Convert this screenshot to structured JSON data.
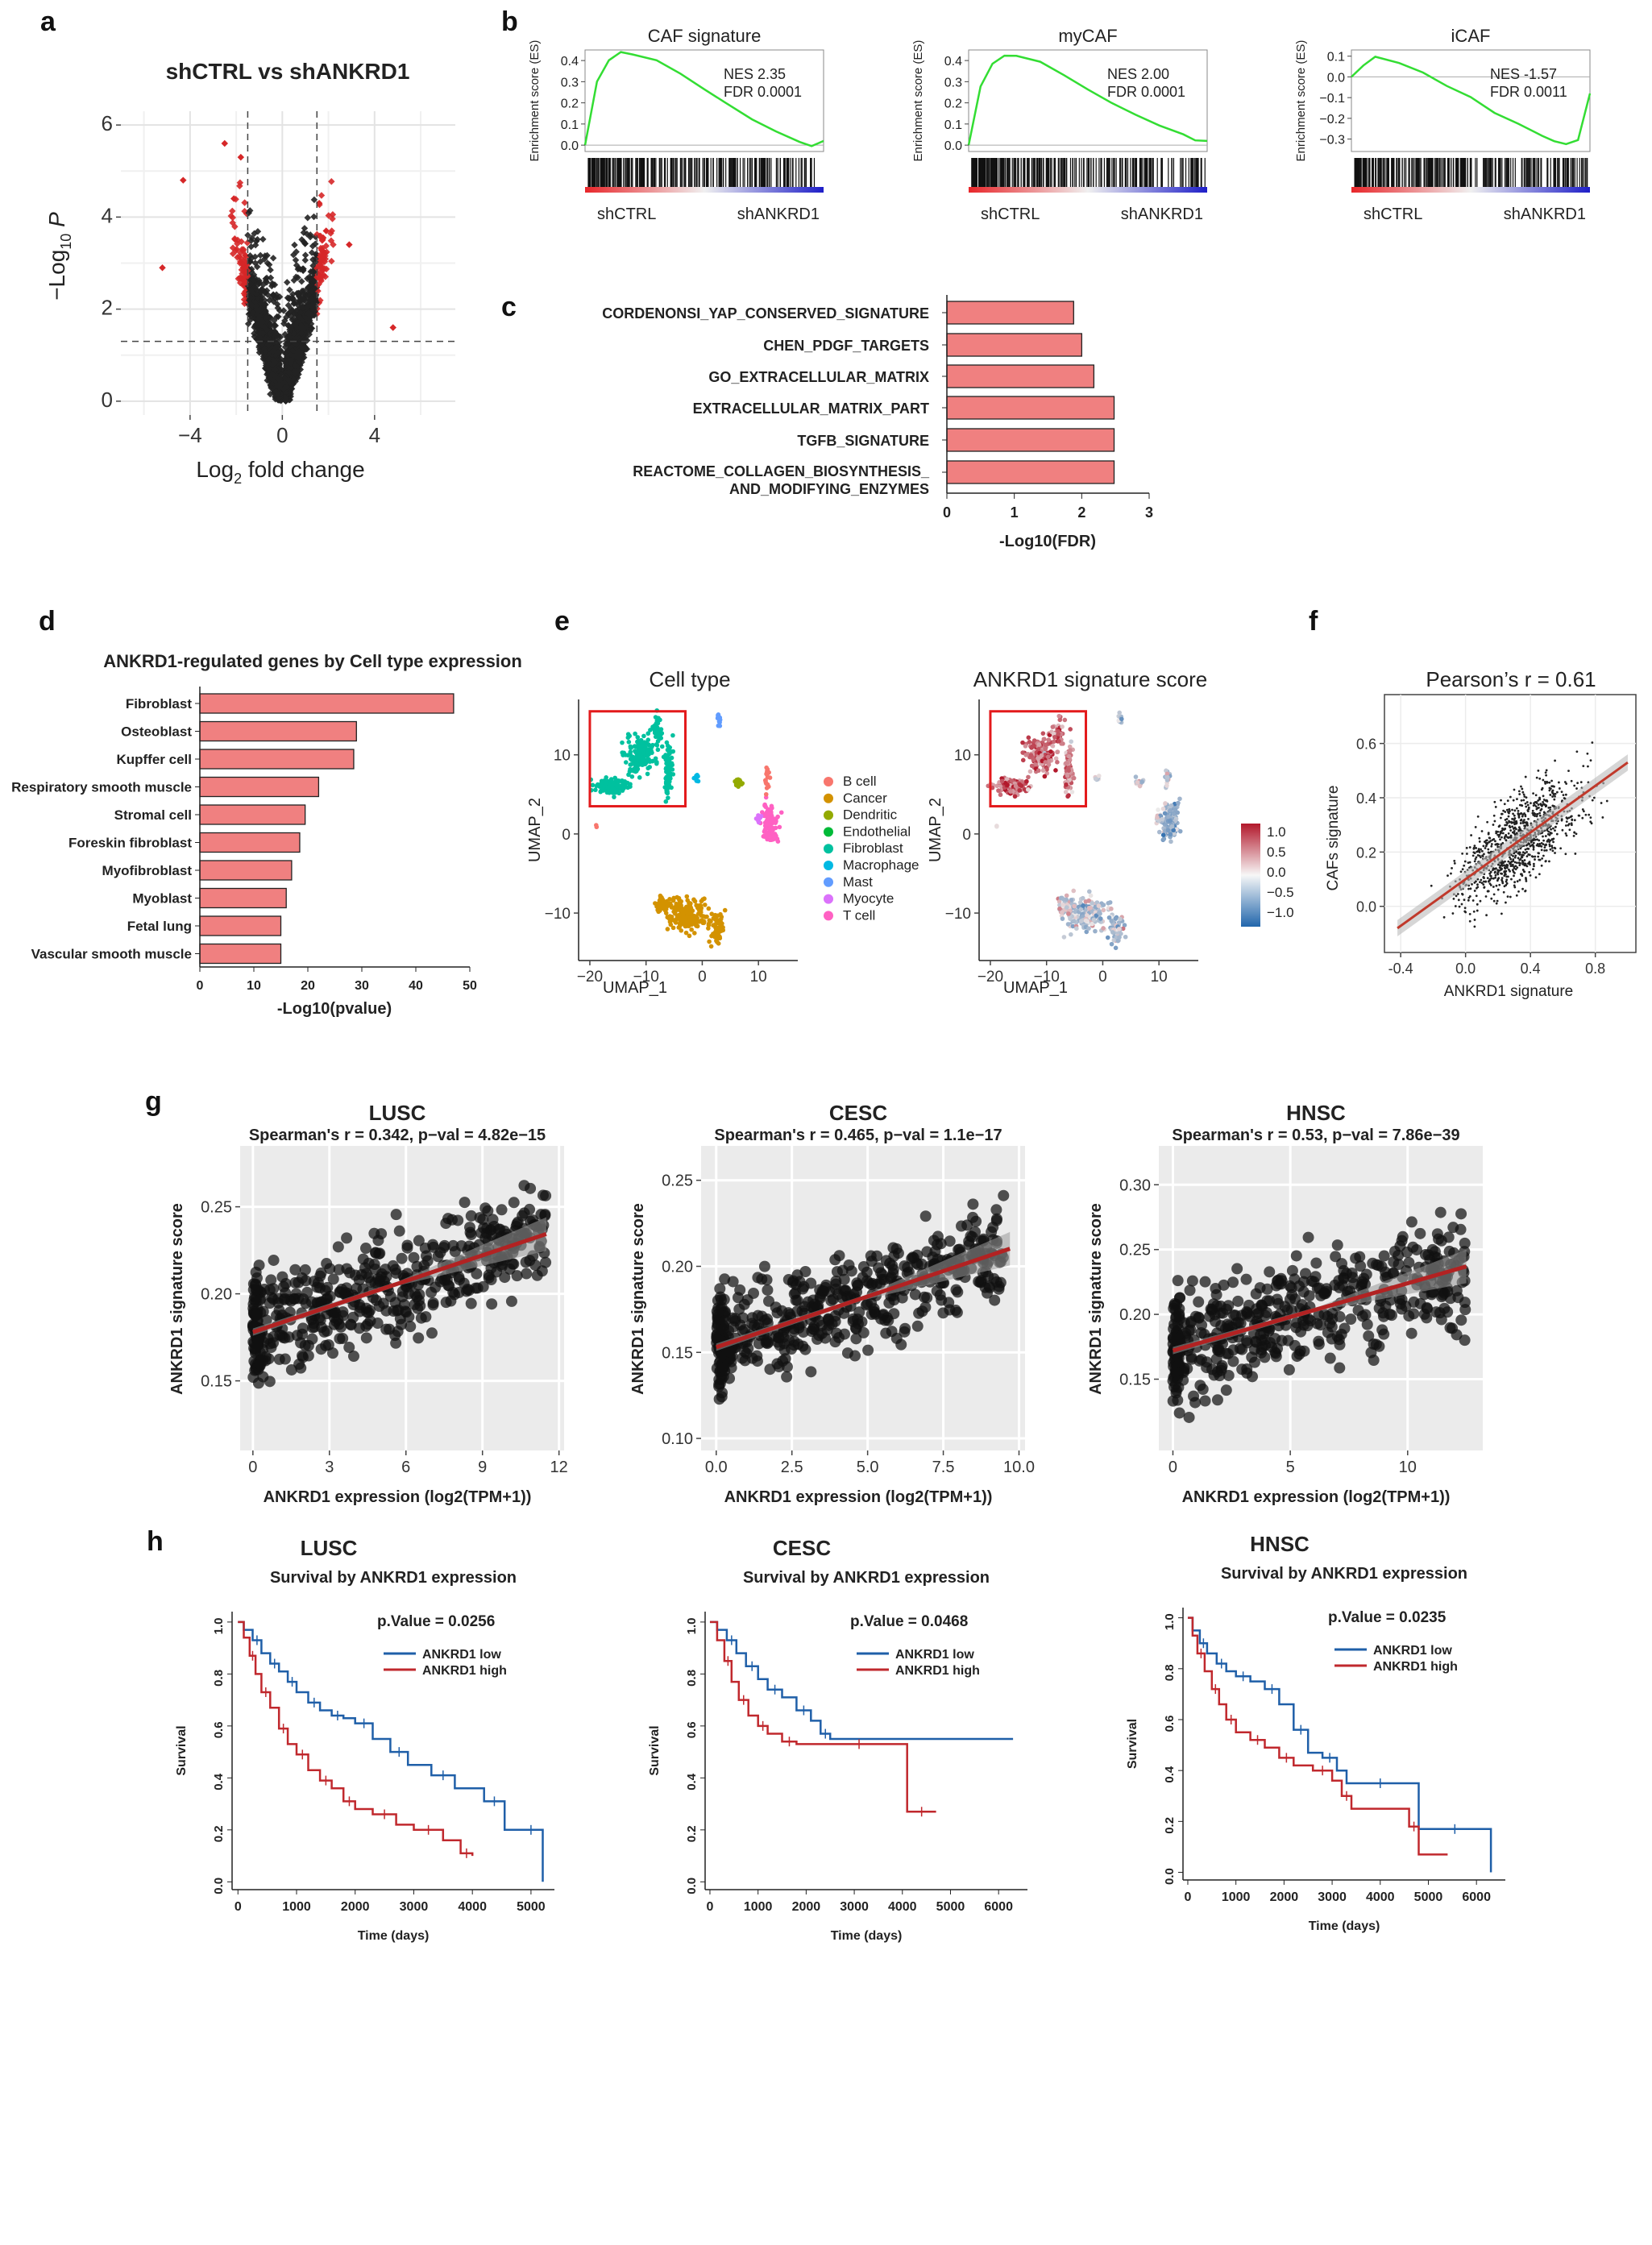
{
  "panel_labels": [
    "a",
    "b",
    "c",
    "d",
    "e",
    "f",
    "g",
    "h"
  ],
  "chart_data": [
    {
      "id": "a",
      "type": "scatter",
      "title": "shCTRL vs shANKRD1",
      "xlabel": "Log2 fold change",
      "xlabel_main": "Log",
      "xlabel_sub": "2",
      "xlabel_rest": " fold change",
      "ylabel": "−Log10 P",
      "ylabel_main": "−Log",
      "ylabel_sub": "10",
      "ylabel_rest": " P",
      "xlim": [
        -7,
        7.5
      ],
      "ylim": [
        -0.3,
        6.3
      ],
      "xticks": [
        -4,
        0,
        4
      ],
      "xtick_labels": [
        "−4",
        "0",
        "4"
      ],
      "yticks": [
        0,
        2,
        4,
        6
      ],
      "ytick_labels": [
        "0",
        "2",
        "4",
        "6"
      ],
      "fc_cutoffs": [
        -1.5,
        1.5
      ],
      "p_cutoff": 1.3,
      "colors": {
        "significant": "#d62728",
        "ns": "#222222"
      }
    },
    {
      "id": "b1",
      "type": "line",
      "title": "CAF signature",
      "ylabel": "Enrichment score (ES)",
      "yticks": [
        0.0,
        0.1,
        0.2,
        0.3,
        0.4
      ],
      "ytick_labels": [
        "0.0",
        "0.1",
        "0.2",
        "0.3",
        "0.4"
      ],
      "ylim": [
        -0.03,
        0.45
      ],
      "x": [
        0,
        0.05,
        0.1,
        0.15,
        0.2,
        0.3,
        0.4,
        0.5,
        0.6,
        0.7,
        0.8,
        0.9,
        0.95,
        1.0
      ],
      "es": [
        0,
        0.3,
        0.4,
        0.44,
        0.43,
        0.4,
        0.34,
        0.27,
        0.19,
        0.12,
        0.06,
        0.02,
        -0.01,
        0.02
      ],
      "annotation": [
        "NES 2.35",
        "FDR 0.0001"
      ],
      "left_label": "shCTRL",
      "right_label": "shANKRD1"
    },
    {
      "id": "b2",
      "type": "line",
      "title": "myCAF",
      "ylabel": "Enrichment score (ES)",
      "yticks": [
        0.0,
        0.1,
        0.2,
        0.3,
        0.4
      ],
      "ytick_labels": [
        "0.0",
        "0.1",
        "0.2",
        "0.3",
        "0.4"
      ],
      "ylim": [
        -0.03,
        0.45
      ],
      "x": [
        0,
        0.05,
        0.1,
        0.15,
        0.2,
        0.3,
        0.4,
        0.5,
        0.6,
        0.7,
        0.8,
        0.9,
        0.95,
        1.0
      ],
      "es": [
        0,
        0.28,
        0.38,
        0.42,
        0.42,
        0.39,
        0.33,
        0.26,
        0.2,
        0.14,
        0.09,
        0.05,
        0.02,
        0.02
      ],
      "annotation": [
        "NES 2.00",
        "FDR 0.0001"
      ],
      "left_label": "shCTRL",
      "right_label": "shANKRD1"
    },
    {
      "id": "b3",
      "type": "line",
      "title": "iCAF",
      "ylabel": "Enrichment score (ES)",
      "yticks": [
        0.1,
        0.0,
        -0.1,
        -0.2,
        -0.3
      ],
      "ytick_labels": [
        "0.1",
        "0.0",
        "−0.1",
        "−0.2",
        "−0.3"
      ],
      "ylim": [
        -0.36,
        0.13
      ],
      "x": [
        0,
        0.05,
        0.1,
        0.2,
        0.3,
        0.4,
        0.5,
        0.6,
        0.7,
        0.8,
        0.85,
        0.9,
        0.95,
        1.0
      ],
      "es": [
        0,
        0.05,
        0.1,
        0.07,
        0.02,
        -0.04,
        -0.1,
        -0.17,
        -0.23,
        -0.28,
        -0.31,
        -0.33,
        -0.3,
        -0.08
      ],
      "annotation": [
        "NES -1.57",
        "FDR 0.0011"
      ],
      "left_label": "shCTRL",
      "right_label": "shANKRD1"
    },
    {
      "id": "c",
      "type": "bar",
      "orientation": "horizontal",
      "categories": [
        "CORDENONSI_YAP_CONSERVED_SIGNATURE",
        "CHEN_PDGF_TARGETS",
        "GO_EXTRACELLULAR_MATRIX",
        "EXTRACELLULAR_MATRIX_PART",
        "TGFB_SIGNATURE",
        "REACTOME_COLLAGEN_BIOSYNTHESIS_\nAND_MODIFYING_ENZYMES"
      ],
      "values": [
        1.88,
        2.0,
        2.18,
        2.48,
        2.48,
        2.48
      ],
      "xlabel": "-Log10(FDR)",
      "xlim": [
        0,
        3
      ],
      "xticks": [
        0,
        1,
        2,
        3
      ],
      "xtick_labels": [
        "0",
        "1",
        "2",
        "3"
      ],
      "bar_color": "#f08080"
    },
    {
      "id": "d",
      "type": "bar",
      "orientation": "horizontal",
      "title": "ANKRD1-regulated genes by Cell type expression",
      "categories": [
        "Fibroblast",
        "Osteoblast",
        "Kupffer cell",
        "Respiratory smooth muscle",
        "Stromal cell",
        "Foreskin fibroblast",
        "Myofibroblast",
        "Myoblast",
        "Fetal lung",
        "Vascular smooth muscle"
      ],
      "values": [
        47,
        29,
        28.5,
        22,
        19.5,
        18.5,
        17,
        16,
        15,
        15
      ],
      "xlabel": "-Log10(pvalue)",
      "xlim": [
        0,
        50
      ],
      "xticks": [
        0,
        10,
        20,
        30,
        40,
        50
      ],
      "xtick_labels": [
        "0",
        "10",
        "20",
        "30",
        "40",
        "50"
      ],
      "bar_color": "#f08080"
    },
    {
      "id": "e1",
      "type": "scatter",
      "title": "Cell type",
      "xlabel": "UMAP_1",
      "ylabel": "UMAP_2",
      "xlim": [
        -22,
        17
      ],
      "ylim": [
        -16,
        17
      ],
      "xticks": [
        -20,
        -10,
        0,
        10
      ],
      "xtick_labels": [
        "−20",
        "−10",
        "0",
        "10"
      ],
      "yticks": [
        -10,
        0,
        10
      ],
      "ytick_labels": [
        "−10",
        "0",
        "10"
      ],
      "legend": [
        {
          "label": "B cell",
          "color": "#f8766d"
        },
        {
          "label": "Cancer",
          "color": "#d39200"
        },
        {
          "label": "Dendritic",
          "color": "#93aa00"
        },
        {
          "label": "Endothelial",
          "color": "#00ba38"
        },
        {
          "label": "Fibroblast",
          "color": "#00c19f"
        },
        {
          "label": "Macrophage",
          "color": "#00b9e3"
        },
        {
          "label": "Mast",
          "color": "#619cff"
        },
        {
          "label": "Myocyte",
          "color": "#db72fb"
        },
        {
          "label": "T cell",
          "color": "#ff61c3"
        }
      ],
      "highlight_box": {
        "x": [
          -20,
          -3
        ],
        "y": [
          3.5,
          15.5
        ],
        "color": "#e31a1c"
      }
    },
    {
      "id": "e2",
      "type": "scatter",
      "title": "ANKRD1 signature score",
      "xlabel": "UMAP_1",
      "ylabel": "UMAP_2",
      "xlim": [
        -22,
        17
      ],
      "ylim": [
        -16,
        17
      ],
      "xticks": [
        -20,
        -10,
        0,
        10
      ],
      "xtick_labels": [
        "−20",
        "−10",
        "0",
        "10"
      ],
      "yticks": [
        -10,
        0,
        10
      ],
      "ytick_labels": [
        "−10",
        "0",
        "10"
      ],
      "colorbar": {
        "min": -1.0,
        "max": 1.0,
        "ticks": [
          "1.0",
          "0.5",
          "0.0",
          "−0.5",
          "−1.0"
        ],
        "colors": [
          "#b2182b",
          "#f7f7f7",
          "#2166ac"
        ]
      },
      "highlight_box": {
        "x": [
          -20,
          -3
        ],
        "y": [
          3.5,
          15.5
        ],
        "color": "#e31a1c"
      }
    },
    {
      "id": "f",
      "type": "scatter",
      "title": "Pearson’s r = 0.61",
      "xlabel": "ANKRD1 signature",
      "ylabel": "CAFs signature",
      "xlim": [
        -0.5,
        1.05
      ],
      "ylim": [
        -0.17,
        0.78
      ],
      "xticks": [
        -0.4,
        0.0,
        0.4,
        0.8
      ],
      "xtick_labels": [
        "-0.4",
        "0.0",
        "0.4",
        "0.8"
      ],
      "yticks": [
        0.0,
        0.2,
        0.4,
        0.6
      ],
      "ytick_labels": [
        "0.0",
        "0.2",
        "0.4",
        "0.6"
      ],
      "fit": {
        "slope": 0.43,
        "intercept": 0.1,
        "color": "#c0392b"
      }
    },
    {
      "id": "g1",
      "type": "scatter",
      "title": "LUSC",
      "subtitle": "Spearman's r = 0.342, p−val = 4.82e−15",
      "xlabel": "ANKRD1 expression (log2(TPM+1))",
      "ylabel": "ANKRD1 signature score",
      "xlim": [
        -0.5,
        12.2
      ],
      "ylim": [
        0.11,
        0.285
      ],
      "xticks": [
        0,
        3,
        6,
        9,
        12
      ],
      "xtick_labels": [
        "0",
        "3",
        "6",
        "9",
        "12"
      ],
      "yticks": [
        0.15,
        0.2,
        0.25
      ],
      "ytick_labels": [
        "0.15",
        "0.20",
        "0.25"
      ],
      "fit": {
        "slope": 0.0049,
        "intercept": 0.178,
        "x_end": 11.5,
        "color": "#b22222"
      }
    },
    {
      "id": "g2",
      "type": "scatter",
      "title": "CESC",
      "subtitle": "Spearman's r = 0.465, p−val = 1.1e−17",
      "xlabel": "ANKRD1 expression (log2(TPM+1))",
      "ylabel": "ANKRD1 signature score",
      "xlim": [
        -0.5,
        10.2
      ],
      "ylim": [
        0.093,
        0.27
      ],
      "xticks": [
        0,
        2.5,
        5,
        7.5,
        10
      ],
      "xtick_labels": [
        "0.0",
        "2.5",
        "5.0",
        "7.5",
        "10.0"
      ],
      "yticks": [
        0.1,
        0.15,
        0.2,
        0.25
      ],
      "ytick_labels": [
        "0.10",
        "0.15",
        "0.20",
        "0.25"
      ],
      "fit": {
        "slope": 0.0059,
        "intercept": 0.153,
        "x_end": 9.7,
        "color": "#b22222"
      }
    },
    {
      "id": "g3",
      "type": "scatter",
      "title": "HNSC",
      "subtitle": "Spearman's r = 0.53, p−val = 7.86e−39",
      "xlabel": "ANKRD1 expression (log2(TPM+1))",
      "ylabel": "ANKRD1 signature score",
      "xlim": [
        -0.6,
        13.2
      ],
      "ylim": [
        0.095,
        0.33
      ],
      "xticks": [
        0,
        5,
        10
      ],
      "xtick_labels": [
        "0",
        "5",
        "10"
      ],
      "yticks": [
        0.15,
        0.2,
        0.25,
        0.3
      ],
      "ytick_labels": [
        "0.15",
        "0.20",
        "0.25",
        "0.30"
      ],
      "fit": {
        "slope": 0.0052,
        "intercept": 0.172,
        "x_end": 12.5,
        "color": "#b22222"
      }
    },
    {
      "id": "h1",
      "type": "line",
      "title": "LUSC",
      "subtitle": "Survival by ANKRD1 expression",
      "xlabel": "Time (days)",
      "ylabel": "Survival",
      "pvalue": "p.Value = 0.0256",
      "xlim": [
        -100,
        5400
      ],
      "ylim": [
        -0.03,
        1.04
      ],
      "xticks": [
        0,
        1000,
        2000,
        3000,
        4000,
        5000
      ],
      "xtick_labels": [
        "0",
        "1000",
        "2000",
        "3000",
        "4000",
        "5000"
      ],
      "yticks": [
        0,
        0.2,
        0.4,
        0.6,
        0.8,
        1.0
      ],
      "ytick_labels": [
        "0.0",
        "0.2",
        "0.4",
        "0.6",
        "0.8",
        "1.0"
      ],
      "series": [
        {
          "name": "ANKRD1 low",
          "color": "#1f5fa8",
          "time": [
            0,
            100,
            250,
            400,
            550,
            700,
            850,
            1000,
            1200,
            1400,
            1600,
            1800,
            2000,
            2300,
            2600,
            2900,
            3300,
            3700,
            4200,
            4550,
            4800,
            5200
          ],
          "surv": [
            1.0,
            0.97,
            0.93,
            0.88,
            0.84,
            0.81,
            0.77,
            0.73,
            0.69,
            0.66,
            0.64,
            0.63,
            0.61,
            0.55,
            0.5,
            0.45,
            0.41,
            0.36,
            0.31,
            0.2,
            0.2,
            0.0
          ]
        },
        {
          "name": "ANKRD1 high",
          "color": "#c0282d",
          "time": [
            0,
            100,
            200,
            300,
            400,
            550,
            700,
            850,
            1000,
            1200,
            1400,
            1600,
            1800,
            2000,
            2300,
            2700,
            3000,
            3500,
            3800,
            4000
          ],
          "surv": [
            1.0,
            0.94,
            0.87,
            0.8,
            0.73,
            0.67,
            0.59,
            0.53,
            0.49,
            0.43,
            0.39,
            0.36,
            0.31,
            0.28,
            0.26,
            0.22,
            0.2,
            0.16,
            0.11,
            0.1
          ]
        }
      ]
    },
    {
      "id": "h2",
      "type": "line",
      "title": "CESC",
      "subtitle": "Survival by ANKRD1 expression",
      "xlabel": "Time (days)",
      "ylabel": "Survival",
      "pvalue": "p.Value = 0.0468",
      "xlim": [
        -100,
        6600
      ],
      "ylim": [
        -0.03,
        1.04
      ],
      "xticks": [
        0,
        1000,
        2000,
        3000,
        4000,
        5000,
        6000
      ],
      "xtick_labels": [
        "0",
        "1000",
        "2000",
        "3000",
        "4000",
        "5000",
        "6000"
      ],
      "yticks": [
        0,
        0.2,
        0.4,
        0.6,
        0.8,
        1.0
      ],
      "ytick_labels": [
        "0.0",
        "0.2",
        "0.4",
        "0.6",
        "0.8",
        "1.0"
      ],
      "series": [
        {
          "name": "ANKRD1 low",
          "color": "#1f5fa8",
          "time": [
            0,
            150,
            350,
            550,
            750,
            1000,
            1200,
            1500,
            1800,
            2100,
            2300,
            2500,
            6300
          ],
          "surv": [
            1.0,
            0.97,
            0.93,
            0.88,
            0.83,
            0.78,
            0.74,
            0.71,
            0.66,
            0.62,
            0.57,
            0.55,
            0.55
          ]
        },
        {
          "name": "ANKRD1 high",
          "color": "#c0282d",
          "time": [
            0,
            150,
            300,
            450,
            600,
            800,
            1000,
            1200,
            1500,
            1800,
            2200,
            4000,
            4100,
            4700
          ],
          "surv": [
            1.0,
            0.93,
            0.85,
            0.77,
            0.7,
            0.64,
            0.6,
            0.57,
            0.54,
            0.53,
            0.53,
            0.53,
            0.27,
            0.27
          ]
        }
      ]
    },
    {
      "id": "h3",
      "type": "line",
      "title": "HNSC",
      "subtitle": "Survival by ANKRD1 expression",
      "xlabel": "Time (days)",
      "ylabel": "Survival",
      "pvalue": "p.Value = 0.0235",
      "xlim": [
        -100,
        6600
      ],
      "ylim": [
        -0.03,
        1.04
      ],
      "xticks": [
        0,
        1000,
        2000,
        3000,
        4000,
        5000,
        6000
      ],
      "xtick_labels": [
        "0",
        "1000",
        "2000",
        "3000",
        "4000",
        "5000",
        "6000"
      ],
      "yticks": [
        0,
        0.2,
        0.4,
        0.6,
        0.8,
        1.0
      ],
      "ytick_labels": [
        "0.0",
        "0.2",
        "0.4",
        "0.6",
        "0.8",
        "1.0"
      ],
      "series": [
        {
          "name": "ANKRD1 low",
          "color": "#1f5fa8",
          "time": [
            0,
            100,
            250,
            400,
            600,
            800,
            1000,
            1300,
            1600,
            1900,
            2200,
            2500,
            2800,
            3100,
            3300,
            4700,
            4800,
            6300
          ],
          "surv": [
            1.0,
            0.95,
            0.9,
            0.86,
            0.82,
            0.79,
            0.77,
            0.75,
            0.72,
            0.66,
            0.56,
            0.47,
            0.45,
            0.4,
            0.35,
            0.35,
            0.17,
            0.0
          ]
        },
        {
          "name": "ANKRD1 high",
          "color": "#c0282d",
          "time": [
            0,
            100,
            200,
            350,
            500,
            650,
            800,
            1000,
            1300,
            1600,
            1900,
            2200,
            2600,
            3000,
            3200,
            3400,
            4600,
            4800,
            5400
          ],
          "surv": [
            1.0,
            0.93,
            0.86,
            0.79,
            0.72,
            0.66,
            0.6,
            0.55,
            0.52,
            0.49,
            0.45,
            0.42,
            0.4,
            0.36,
            0.3,
            0.25,
            0.18,
            0.07,
            0.07
          ]
        }
      ]
    }
  ]
}
